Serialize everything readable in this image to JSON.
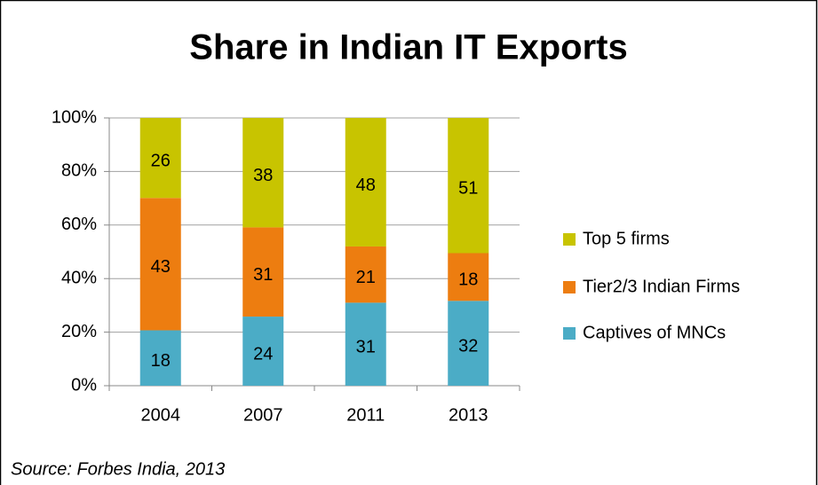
{
  "chart_data": {
    "type": "bar",
    "stacked": "percent",
    "title": "Share in Indian IT Exports",
    "categories": [
      "2004",
      "2007",
      "2011",
      "2013"
    ],
    "series": [
      {
        "name": "Captives of MNCs",
        "color": "#4bacc6",
        "values": [
          18,
          24,
          31,
          32
        ]
      },
      {
        "name": "Tier2/3 Indian Firms",
        "color": "#ed7d10",
        "values": [
          43,
          31,
          21,
          18
        ]
      },
      {
        "name": "Top 5 firms",
        "color": "#c8c400",
        "values": [
          26,
          38,
          48,
          51
        ]
      }
    ],
    "ylim": [
      0,
      100
    ],
    "yticks": [
      {
        "value": 0,
        "label": "0%"
      },
      {
        "value": 20,
        "label": "20%"
      },
      {
        "value": 40,
        "label": "40%"
      },
      {
        "value": 60,
        "label": "60%"
      },
      {
        "value": 80,
        "label": "80%"
      },
      {
        "value": 100,
        "label": "100%"
      }
    ],
    "grid": true,
    "legend": "right",
    "source": "Source: Forbes India, 2013"
  }
}
